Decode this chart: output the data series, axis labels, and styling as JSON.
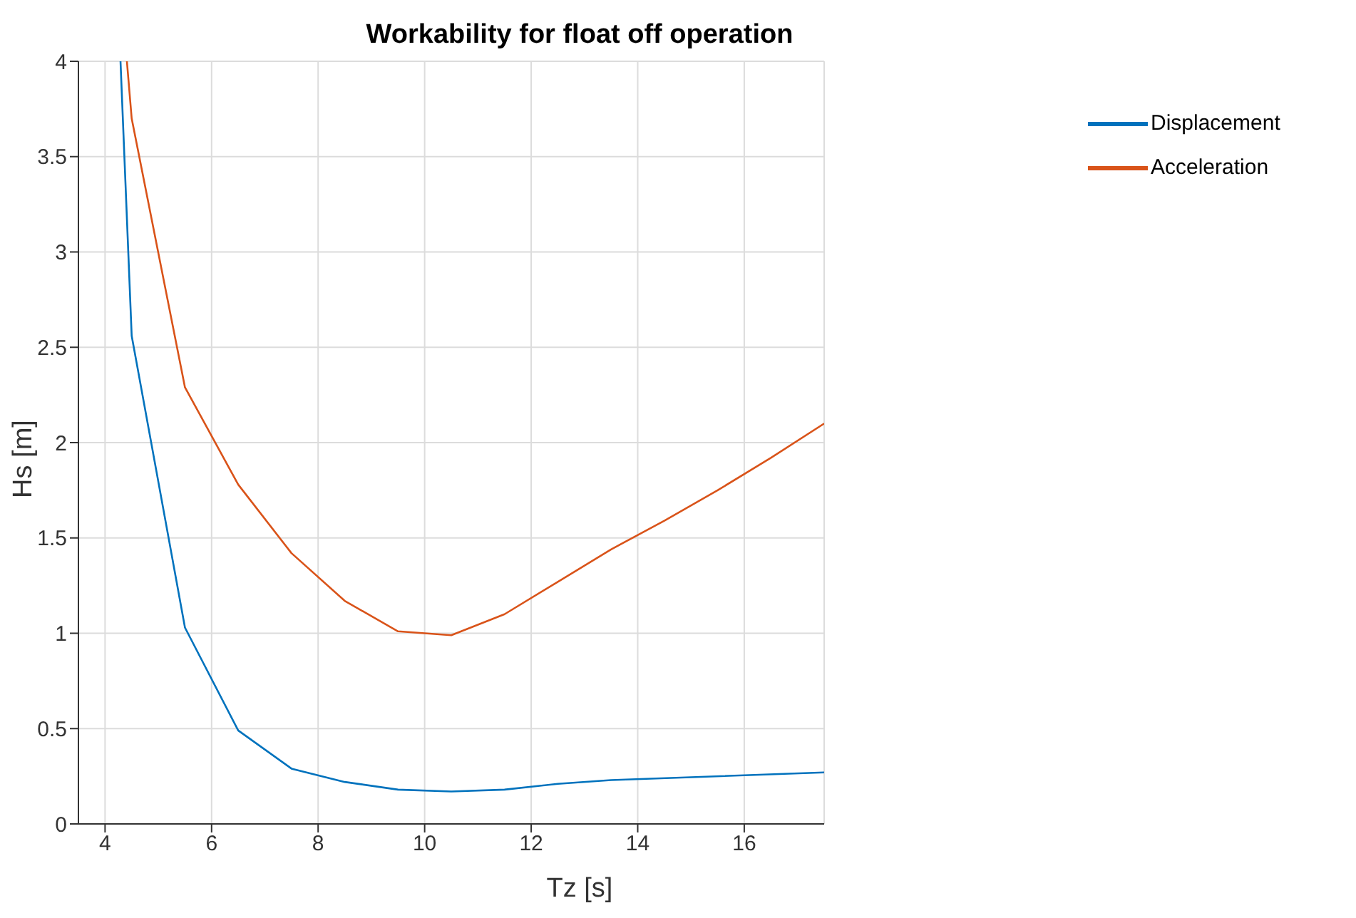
{
  "chart_data": {
    "type": "line",
    "title": "Workability for float off operation",
    "xlabel": "Tz [s]",
    "ylabel": "Hs [m]",
    "series": [
      {
        "name": "Displacement",
        "color": "#0072bd",
        "x": [
          4.29,
          4.5,
          5.5,
          6.5,
          7.5,
          8.5,
          9.5,
          10.5,
          11.5,
          12.5,
          13.5,
          17.5
        ],
        "values": [
          4,
          2.56,
          1.03,
          0.49,
          0.29,
          0.22,
          0.18,
          0.17,
          0.18,
          0.21,
          0.23,
          0.27
        ]
      },
      {
        "name": "Acceleration",
        "color": "#d95319",
        "x": [
          4.41,
          4.5,
          5.5,
          6.5,
          7.5,
          8.5,
          9.5,
          10.5,
          11.5,
          12.5,
          13.5,
          14.5,
          15.5,
          16.5,
          17.5
        ],
        "values": [
          4,
          3.7,
          2.29,
          1.78,
          1.42,
          1.17,
          1.01,
          0.99,
          1.1,
          1.27,
          1.44,
          1.59,
          1.75,
          1.92,
          2.1
        ]
      }
    ],
    "xlim": [
      3.5,
      17.5
    ],
    "xticks": [
      4,
      6,
      8,
      10,
      12,
      14,
      16
    ],
    "ylim": [
      0,
      4
    ],
    "yticks": [
      0,
      0.5,
      1,
      1.5,
      2,
      2.5,
      3,
      3.5,
      4
    ],
    "grid": true,
    "legend": "top right",
    "marker": "none",
    "line_style": "solid"
  }
}
